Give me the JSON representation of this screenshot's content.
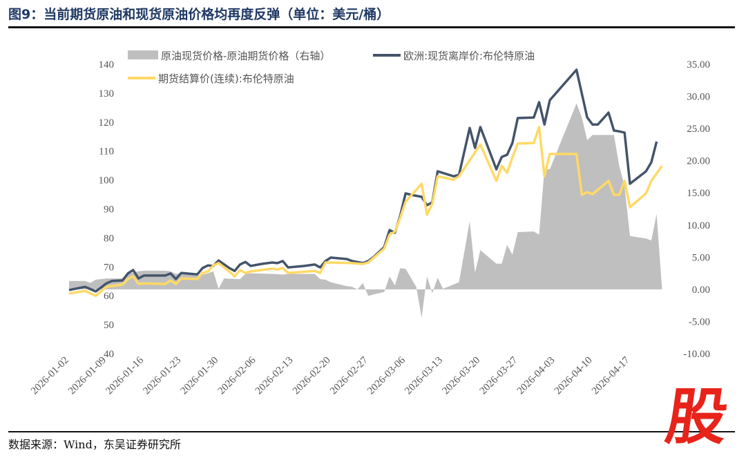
{
  "title": "图9：当前期货原油和现货原油价格均再度反弹（单位：美元/桶）",
  "source": "数据来源：Wind，东吴证券研究所",
  "logo": "股",
  "chart_data": {
    "type": "line+area",
    "title": "",
    "grid": false,
    "legend_placement": "top",
    "x_ticks": [
      "2026-01-02",
      "2026-01-09",
      "2026-01-16",
      "2026-01-23",
      "2026-01-30",
      "2026-02-06",
      "2026-02-13",
      "2026-02-20",
      "2026-02-27",
      "2026-03-06",
      "2026-03-13",
      "2026-03-20",
      "2026-03-27",
      "2026-04-03",
      "2026-04-10",
      "2026-04-17"
    ],
    "y_left": {
      "range": [
        40,
        140
      ],
      "ticks": [
        "40",
        "50",
        "60",
        "70",
        "80",
        "90",
        "100",
        "110",
        "120",
        "130",
        "140"
      ]
    },
    "y_right": {
      "range": [
        -10,
        35
      ],
      "ticks": [
        "-10.00",
        "-5.00",
        "0.00",
        "5.00",
        "10.00",
        "15.00",
        "20.00",
        "25.00",
        "30.00",
        "35.00"
      ]
    },
    "series": [
      {
        "name": "原油现货价格-原油期货价格（右轴）",
        "axis": "right",
        "kind": "area",
        "color": "#bfbfbf",
        "points": [
          [
            "2026-01-02",
            1.3
          ],
          [
            "2026-01-05",
            1.3
          ],
          [
            "2026-01-06",
            1.0
          ],
          [
            "2026-01-07",
            1.5
          ],
          [
            "2026-01-09",
            1.7
          ],
          [
            "2026-01-12",
            1.7
          ],
          [
            "2026-01-13",
            2.4
          ],
          [
            "2026-01-15",
            2.8
          ],
          [
            "2026-01-16",
            2.9
          ],
          [
            "2026-01-20",
            2.9
          ],
          [
            "2026-01-21",
            2.8
          ],
          [
            "2026-01-22",
            2.4
          ],
          [
            "2026-01-23",
            2.5
          ],
          [
            "2026-01-26",
            2.1
          ],
          [
            "2026-01-28",
            2.5
          ],
          [
            "2026-01-29",
            2.8
          ],
          [
            "2026-01-30",
            0.1
          ],
          [
            "2026-01-31",
            1.7
          ],
          [
            "2026-02-03",
            1.6
          ],
          [
            "2026-02-04",
            2.4
          ],
          [
            "2026-02-05",
            2.5
          ],
          [
            "2026-02-09",
            2.4
          ],
          [
            "2026-02-11",
            2.3
          ],
          [
            "2026-02-12",
            2.4
          ],
          [
            "2026-02-17",
            2.4
          ],
          [
            "2026-02-18",
            1.6
          ],
          [
            "2026-02-19",
            1.5
          ],
          [
            "2026-02-20",
            1.1
          ],
          [
            "2026-02-23",
            0.5
          ],
          [
            "2026-02-24",
            0.4
          ],
          [
            "2026-02-25",
            0.0
          ],
          [
            "2026-02-26",
            1.0
          ],
          [
            "2026-02-27",
            -1.0
          ],
          [
            "2026-03-02",
            -0.4
          ],
          [
            "2026-03-03",
            2.0
          ],
          [
            "2026-03-04",
            0.6
          ],
          [
            "2026-03-05",
            3.3
          ],
          [
            "2026-03-06",
            3.2
          ],
          [
            "2026-03-08",
            0.4
          ],
          [
            "2026-03-09",
            -4.4
          ],
          [
            "2026-03-10",
            2.0
          ],
          [
            "2026-03-11",
            -0.6
          ],
          [
            "2026-03-12",
            1.8
          ],
          [
            "2026-03-13",
            0.1
          ],
          [
            "2026-03-16",
            1.1
          ],
          [
            "2026-03-18",
            10.6
          ],
          [
            "2026-03-19",
            2.6
          ],
          [
            "2026-03-20",
            6.1
          ],
          [
            "2026-03-23",
            4.0
          ],
          [
            "2026-03-24",
            4.0
          ],
          [
            "2026-03-25",
            6.9
          ],
          [
            "2026-03-26",
            5.4
          ],
          [
            "2026-03-27",
            8.9
          ],
          [
            "2026-03-30",
            9.0
          ],
          [
            "2026-03-31",
            8.5
          ],
          [
            "2026-04-01",
            18.7
          ],
          [
            "2026-04-02",
            18.7
          ],
          [
            "2026-04-07",
            28.9
          ],
          [
            "2026-04-08",
            26.7
          ],
          [
            "2026-04-09",
            23.2
          ],
          [
            "2026-04-10",
            24.0
          ],
          [
            "2026-04-14",
            24.0
          ],
          [
            "2026-04-15",
            19.2
          ],
          [
            "2026-04-16",
            16.0
          ],
          [
            "2026-04-17",
            8.3
          ],
          [
            "2026-04-20",
            7.9
          ],
          [
            "2026-04-21",
            7.6
          ],
          [
            "2026-04-22",
            11.7
          ],
          [
            "2026-04-23",
            0.1
          ]
        ]
      },
      {
        "name": "欧洲:现货离岸价:布伦特原油",
        "axis": "left",
        "kind": "line",
        "color": "#44546a",
        "points": [
          [
            "2026-01-02",
            62.0
          ],
          [
            "2026-01-05",
            63.1
          ],
          [
            "2026-01-07",
            61.5
          ],
          [
            "2026-01-09",
            64.3
          ],
          [
            "2026-01-10",
            65.1
          ],
          [
            "2026-01-12",
            65.3
          ],
          [
            "2026-01-13",
            67.7
          ],
          [
            "2026-01-14",
            68.9
          ],
          [
            "2026-01-15",
            66.0
          ],
          [
            "2026-01-16",
            67.0
          ],
          [
            "2026-01-20",
            67.0
          ],
          [
            "2026-01-21",
            67.7
          ],
          [
            "2026-01-22",
            65.8
          ],
          [
            "2026-01-23",
            67.9
          ],
          [
            "2026-01-26",
            67.4
          ],
          [
            "2026-01-27",
            69.6
          ],
          [
            "2026-01-28",
            70.5
          ],
          [
            "2026-01-29",
            70.3
          ],
          [
            "2026-01-30",
            72.2
          ],
          [
            "2026-02-01",
            69.6
          ],
          [
            "2026-02-02",
            68.6
          ],
          [
            "2026-02-03",
            70.8
          ],
          [
            "2026-02-04",
            71.7
          ],
          [
            "2026-02-05",
            70.3
          ],
          [
            "2026-02-07",
            71.0
          ],
          [
            "2026-02-09",
            71.5
          ],
          [
            "2026-02-10",
            71.3
          ],
          [
            "2026-02-11",
            72.0
          ],
          [
            "2026-02-12",
            69.8
          ],
          [
            "2026-02-15",
            70.3
          ],
          [
            "2026-02-17",
            70.8
          ],
          [
            "2026-02-18",
            69.8
          ],
          [
            "2026-02-19",
            72.0
          ],
          [
            "2026-02-20",
            73.2
          ],
          [
            "2026-02-23",
            72.7
          ],
          [
            "2026-02-24",
            72.0
          ],
          [
            "2026-02-26",
            71.3
          ],
          [
            "2026-02-27",
            72.0
          ],
          [
            "2026-02-28",
            73.4
          ],
          [
            "2026-03-02",
            76.8
          ],
          [
            "2026-03-03",
            82.7
          ],
          [
            "2026-03-04",
            81.8
          ],
          [
            "2026-03-05",
            87.7
          ],
          [
            "2026-03-06",
            95.4
          ],
          [
            "2026-03-07",
            94.9
          ],
          [
            "2026-03-09",
            94.2
          ],
          [
            "2026-03-10",
            91.3
          ],
          [
            "2026-03-11",
            92.3
          ],
          [
            "2026-03-12",
            103.0
          ],
          [
            "2026-03-15",
            101.3
          ],
          [
            "2026-03-16",
            101.8
          ],
          [
            "2026-03-18",
            118.0
          ],
          [
            "2026-03-19",
            111.1
          ],
          [
            "2026-03-20",
            118.3
          ],
          [
            "2026-03-23",
            103.7
          ],
          [
            "2026-03-24",
            108.0
          ],
          [
            "2026-03-25",
            108.7
          ],
          [
            "2026-03-26",
            112.8
          ],
          [
            "2026-03-27",
            121.4
          ],
          [
            "2026-03-30",
            121.6
          ],
          [
            "2026-03-31",
            126.9
          ],
          [
            "2026-04-01",
            119.2
          ],
          [
            "2026-04-02",
            127.6
          ],
          [
            "2026-04-07",
            138.1
          ],
          [
            "2026-04-09",
            121.6
          ],
          [
            "2026-04-10",
            119.2
          ],
          [
            "2026-04-11",
            119.2
          ],
          [
            "2026-04-13",
            123.3
          ],
          [
            "2026-04-14",
            117.1
          ],
          [
            "2026-04-15",
            116.8
          ],
          [
            "2026-04-16",
            116.4
          ],
          [
            "2026-04-17",
            98.7
          ],
          [
            "2026-04-20",
            103.0
          ],
          [
            "2026-04-21",
            106.1
          ],
          [
            "2026-04-22",
            113.3
          ]
        ]
      },
      {
        "name": "期货结算价(连续):布伦特原油",
        "axis": "left",
        "kind": "line",
        "color": "#ffd966",
        "points": [
          [
            "2026-01-02",
            60.8
          ],
          [
            "2026-01-05",
            61.7
          ],
          [
            "2026-01-07",
            60.0
          ],
          [
            "2026-01-09",
            63.1
          ],
          [
            "2026-01-12",
            63.9
          ],
          [
            "2026-01-13",
            65.8
          ],
          [
            "2026-01-14",
            66.7
          ],
          [
            "2026-01-15",
            64.1
          ],
          [
            "2026-01-16",
            64.3
          ],
          [
            "2026-01-20",
            64.1
          ],
          [
            "2026-01-21",
            65.3
          ],
          [
            "2026-01-22",
            64.1
          ],
          [
            "2026-01-23",
            66.0
          ],
          [
            "2026-01-26",
            65.8
          ],
          [
            "2026-01-27",
            67.9
          ],
          [
            "2026-01-28",
            68.4
          ],
          [
            "2026-01-29",
            70.5
          ],
          [
            "2026-01-30",
            71.3
          ],
          [
            "2026-02-01",
            68.4
          ],
          [
            "2026-02-02",
            66.7
          ],
          [
            "2026-02-03",
            68.9
          ],
          [
            "2026-02-04",
            67.9
          ],
          [
            "2026-02-05",
            68.4
          ],
          [
            "2026-02-09",
            69.4
          ],
          [
            "2026-02-10",
            69.1
          ],
          [
            "2026-02-11",
            69.6
          ],
          [
            "2026-02-12",
            67.9
          ],
          [
            "2026-02-17",
            68.6
          ],
          [
            "2026-02-18",
            67.9
          ],
          [
            "2026-02-19",
            71.5
          ],
          [
            "2026-02-20",
            71.5
          ],
          [
            "2026-02-24",
            71.3
          ],
          [
            "2026-02-26",
            71.0
          ],
          [
            "2026-02-27",
            71.5
          ],
          [
            "2026-03-02",
            76.3
          ],
          [
            "2026-03-03",
            81.1
          ],
          [
            "2026-03-04",
            82.2
          ],
          [
            "2026-03-05",
            87.0
          ],
          [
            "2026-03-06",
            92.5
          ],
          [
            "2026-03-09",
            98.7
          ],
          [
            "2026-03-10",
            88.0
          ],
          [
            "2026-03-11",
            91.8
          ],
          [
            "2026-03-12",
            101.3
          ],
          [
            "2026-03-15",
            100.1
          ],
          [
            "2026-03-16",
            101.3
          ],
          [
            "2026-03-18",
            106.8
          ],
          [
            "2026-03-20",
            112.3
          ],
          [
            "2026-03-23",
            99.7
          ],
          [
            "2026-03-24",
            104.9
          ],
          [
            "2026-03-25",
            102.5
          ],
          [
            "2026-03-26",
            107.8
          ],
          [
            "2026-03-27",
            112.6
          ],
          [
            "2026-03-30",
            112.8
          ],
          [
            "2026-03-31",
            118.3
          ],
          [
            "2026-04-01",
            101.3
          ],
          [
            "2026-04-02",
            109.0
          ],
          [
            "2026-04-07",
            109.0
          ],
          [
            "2026-04-08",
            94.9
          ],
          [
            "2026-04-09",
            95.8
          ],
          [
            "2026-04-10",
            95.1
          ],
          [
            "2026-04-13",
            99.7
          ],
          [
            "2026-04-14",
            94.9
          ],
          [
            "2026-04-15",
            94.9
          ],
          [
            "2026-04-16",
            99.7
          ],
          [
            "2026-04-17",
            90.6
          ],
          [
            "2026-04-20",
            95.4
          ],
          [
            "2026-04-21",
            99.7
          ],
          [
            "2026-04-23",
            104.9
          ]
        ]
      }
    ]
  }
}
